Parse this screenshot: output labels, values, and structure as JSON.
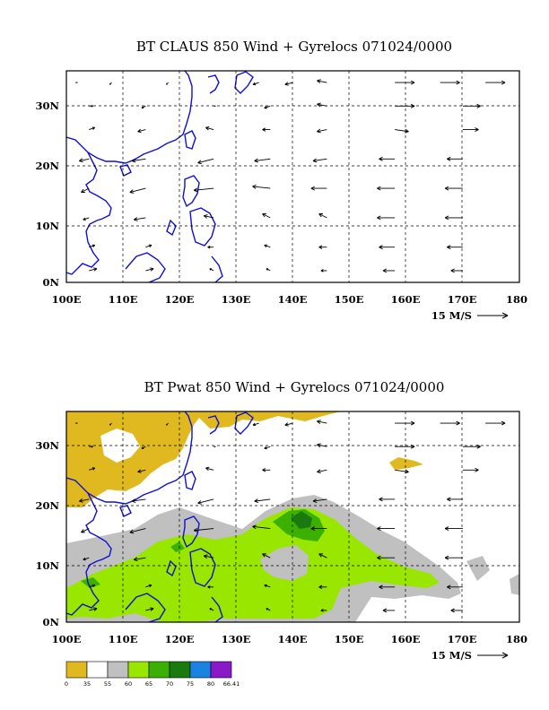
{
  "chart_data": [
    {
      "type": "vector",
      "title": "BT CLAUS 850 Wind + Gyrelocs 071024/0000",
      "x_ticks": [
        "100E",
        "110E",
        "120E",
        "130E",
        "140E",
        "150E",
        "160E",
        "170E",
        "180"
      ],
      "y_ticks": [
        "0N",
        "10N",
        "20N",
        "30N"
      ],
      "xlim": [
        100,
        180
      ],
      "ylim": [
        0,
        36
      ],
      "grid": true,
      "reference_vector_label": "15 M/S",
      "series": [
        {
          "values": [
            {
              "lon": 102,
              "lat": 34,
              "u": -1,
              "v": 0
            },
            {
              "lon": 108,
              "lat": 34,
              "u": -1,
              "v": -1
            },
            {
              "lon": 118,
              "lat": 34,
              "u": -1,
              "v": -1
            },
            {
              "lon": 134,
              "lat": 34,
              "u": -3,
              "v": -1
            },
            {
              "lon": 140,
              "lat": 34,
              "u": -4,
              "v": -1
            },
            {
              "lon": 146,
              "lat": 34,
              "u": -5,
              "v": 1
            },
            {
              "lon": 158,
              "lat": 34,
              "u": 10,
              "v": 0
            },
            {
              "lon": 166,
              "lat": 34,
              "u": 10,
              "v": 0
            },
            {
              "lon": 174,
              "lat": 34,
              "u": 10,
              "v": 0
            },
            {
              "lon": 104,
              "lat": 30,
              "u": 2,
              "v": 0
            },
            {
              "lon": 114,
              "lat": 30,
              "u": -2,
              "v": -1
            },
            {
              "lon": 126,
              "lat": 30,
              "u": 1,
              "v": 0
            },
            {
              "lon": 136,
              "lat": 30,
              "u": -3,
              "v": -1
            },
            {
              "lon": 146,
              "lat": 30,
              "u": -5,
              "v": 1
            },
            {
              "lon": 158,
              "lat": 30,
              "u": 10,
              "v": 0
            },
            {
              "lon": 170,
              "lat": 30,
              "u": 9,
              "v": 0
            },
            {
              "lon": 104,
              "lat": 26,
              "u": 3,
              "v": 1
            },
            {
              "lon": 114,
              "lat": 26,
              "u": -4,
              "v": -1
            },
            {
              "lon": 126,
              "lat": 26,
              "u": -4,
              "v": 1
            },
            {
              "lon": 136,
              "lat": 26,
              "u": -4,
              "v": 0
            },
            {
              "lon": 146,
              "lat": 26,
              "u": -5,
              "v": -1
            },
            {
              "lon": 158,
              "lat": 26,
              "u": 7,
              "v": -1
            },
            {
              "lon": 170,
              "lat": 26,
              "u": 8,
              "v": 0
            },
            {
              "lon": 104,
              "lat": 21,
              "u": -5,
              "v": -1
            },
            {
              "lon": 114,
              "lat": 21,
              "u": -7,
              "v": -1
            },
            {
              "lon": 126,
              "lat": 21,
              "u": -8,
              "v": -2
            },
            {
              "lon": 136,
              "lat": 21,
              "u": -8,
              "v": -1
            },
            {
              "lon": 146,
              "lat": 21,
              "u": -7,
              "v": -1
            },
            {
              "lon": 158,
              "lat": 21,
              "u": -8,
              "v": 0
            },
            {
              "lon": 170,
              "lat": 21,
              "u": -8,
              "v": 0
            },
            {
              "lon": 104,
              "lat": 16,
              "u": -4,
              "v": -2
            },
            {
              "lon": 114,
              "lat": 16,
              "u": -8,
              "v": -2
            },
            {
              "lon": 126,
              "lat": 16,
              "u": -10,
              "v": -1
            },
            {
              "lon": 136,
              "lat": 16,
              "u": -9,
              "v": 1
            },
            {
              "lon": 146,
              "lat": 16,
              "u": -8,
              "v": 0
            },
            {
              "lon": 158,
              "lat": 16,
              "u": -9,
              "v": 0
            },
            {
              "lon": 170,
              "lat": 16,
              "u": -9,
              "v": 0
            },
            {
              "lon": 104,
              "lat": 11,
              "u": -3,
              "v": -1
            },
            {
              "lon": 114,
              "lat": 11,
              "u": -6,
              "v": -1
            },
            {
              "lon": 126,
              "lat": 11,
              "u": -5,
              "v": 1
            },
            {
              "lon": 136,
              "lat": 11,
              "u": -4,
              "v": 2
            },
            {
              "lon": 146,
              "lat": 11,
              "u": -4,
              "v": 2
            },
            {
              "lon": 158,
              "lat": 11,
              "u": -9,
              "v": 0
            },
            {
              "lon": 170,
              "lat": 11,
              "u": -9,
              "v": 0
            },
            {
              "lon": 104,
              "lat": 6,
              "u": 3,
              "v": 1
            },
            {
              "lon": 114,
              "lat": 6,
              "u": 3,
              "v": 1
            },
            {
              "lon": 126,
              "lat": 6,
              "u": -3,
              "v": 0
            },
            {
              "lon": 136,
              "lat": 6,
              "u": -3,
              "v": 1
            },
            {
              "lon": 146,
              "lat": 6,
              "u": -4,
              "v": 0
            },
            {
              "lon": 158,
              "lat": 6,
              "u": -8,
              "v": 0
            },
            {
              "lon": 170,
              "lat": 6,
              "u": -8,
              "v": 0
            },
            {
              "lon": 104,
              "lat": 2,
              "u": 4,
              "v": 1
            },
            {
              "lon": 114,
              "lat": 2,
              "u": 4,
              "v": 1
            },
            {
              "lon": 126,
              "lat": 2,
              "u": -2,
              "v": 1
            },
            {
              "lon": 136,
              "lat": 2,
              "u": -2,
              "v": 1
            },
            {
              "lon": 146,
              "lat": 2,
              "u": -3,
              "v": 0
            },
            {
              "lon": 158,
              "lat": 2,
              "u": -6,
              "v": 0
            },
            {
              "lon": 170,
              "lat": 2,
              "u": -6,
              "v": 0
            }
          ]
        }
      ]
    },
    {
      "type": "vector",
      "title": "BT Pwat 850 Wind + Gyrelocs 071024/0000",
      "x_ticks": [
        "100E",
        "110E",
        "120E",
        "130E",
        "140E",
        "150E",
        "160E",
        "170E",
        "180"
      ],
      "y_ticks": [
        "0N",
        "10N",
        "20N",
        "30N"
      ],
      "xlim": [
        100,
        180
      ],
      "ylim": [
        0,
        36
      ],
      "grid": true,
      "reference_vector_label": "15 M/S",
      "colorbar": {
        "bounds": [
          "0",
          "35",
          "55",
          "60",
          "65",
          "70",
          "75",
          "80",
          "66.41"
        ],
        "colors": [
          "#e0b820",
          "#ffffff",
          "#c0c0c0",
          "#99e600",
          "#3cb000",
          "#1a7a10",
          "#1a82e0",
          "#8a1ac8"
        ]
      },
      "fill_regions": [
        {
          "level": "0-35",
          "color": "#e0b820"
        },
        {
          "level": "55-60",
          "color": "#c0c0c0"
        },
        {
          "level": "60-65",
          "color": "#99e600"
        },
        {
          "level": "65-70",
          "color": "#3cb000"
        },
        {
          "level": "70-75",
          "color": "#1a7a10"
        }
      ]
    }
  ],
  "colors": {
    "coast": "#1010d0",
    "frame": "#000000"
  }
}
